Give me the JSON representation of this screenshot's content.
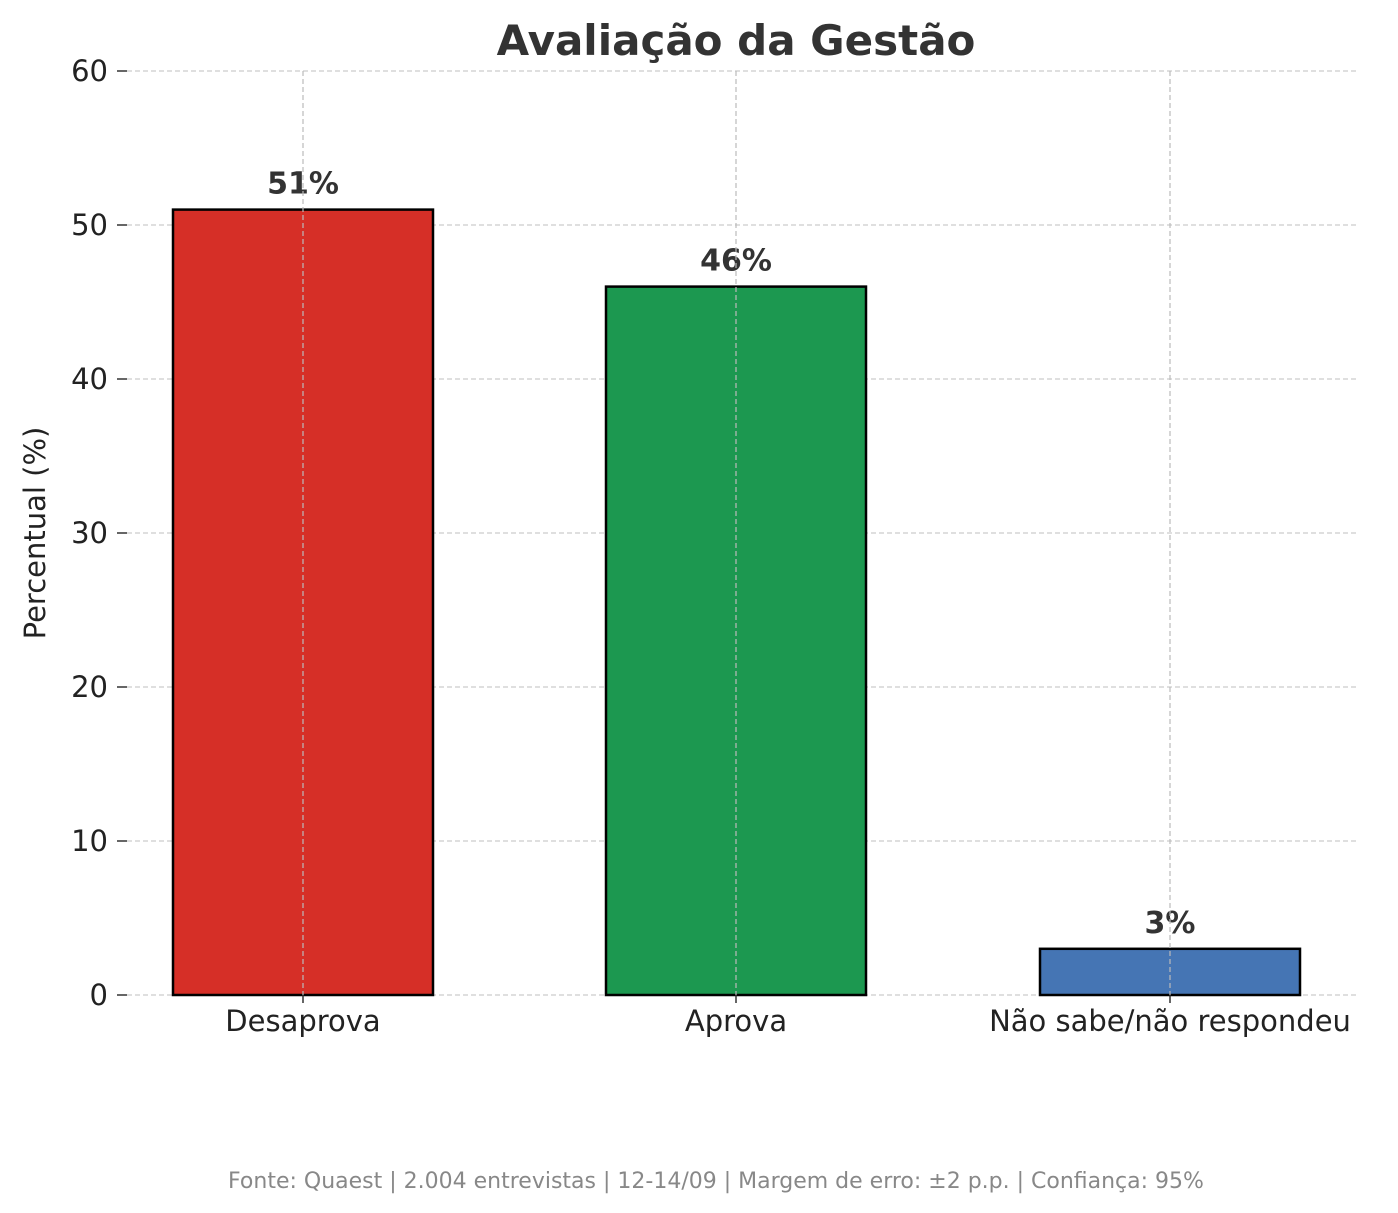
{
  "chart_data": {
    "type": "bar",
    "title": "Avaliação da Gestão",
    "xlabel": "",
    "ylabel": "Percentual (%)",
    "categories": [
      "Desaprova",
      "Aprova",
      "Não sabe/não respondeu"
    ],
    "values": [
      51,
      46,
      3
    ],
    "data_labels": [
      "51%",
      "46%",
      "3%"
    ],
    "colors": [
      "#d62f27",
      "#1c9850",
      "#4575b4"
    ],
    "ylim": [
      0,
      60
    ],
    "yticks": [
      0,
      10,
      20,
      30,
      40,
      50,
      60
    ],
    "grid": true,
    "footer": "Fonte: Quaest | 2.004 entrevistas | 12-14/09 | Margem de erro: ±2 p.p. | Confiança: 95%"
  }
}
